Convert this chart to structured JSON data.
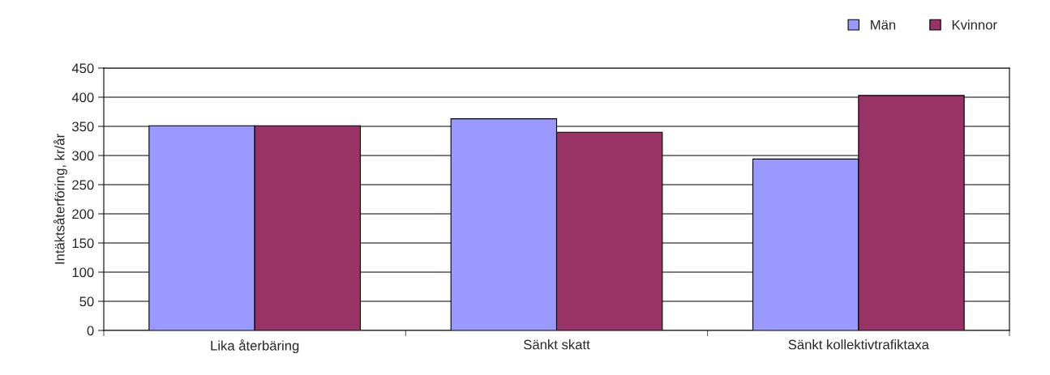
{
  "chart_data": {
    "type": "bar",
    "ylabel": "Intäktsåterföring, kr/år",
    "categories": [
      "Lika återbäring",
      "Sänkt skatt",
      "Sänkt kollektivtrafiktaxa"
    ],
    "series": [
      {
        "name": "Män",
        "color": "#9999ff",
        "values": [
          351,
          363,
          294
        ]
      },
      {
        "name": "Kvinnor",
        "color": "#993366",
        "values": [
          351,
          340,
          403
        ]
      }
    ],
    "ylim": [
      0,
      450
    ],
    "yticks": [
      0,
      50,
      100,
      150,
      200,
      250,
      300,
      350,
      400,
      450
    ],
    "grid": "y",
    "legend": "top right"
  }
}
